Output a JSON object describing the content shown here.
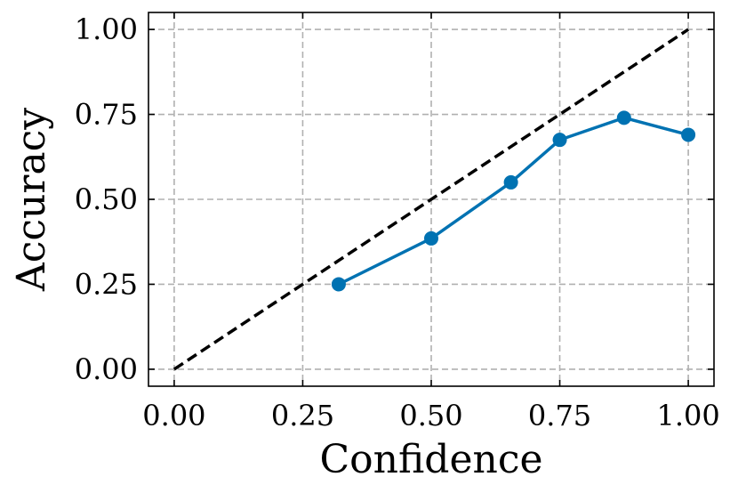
{
  "chart_data": {
    "type": "line",
    "xlabel": "Confidence",
    "ylabel": "Accuracy",
    "xlim": [
      -0.05,
      1.05
    ],
    "ylim": [
      -0.05,
      1.05
    ],
    "xticks": [
      0.0,
      0.25,
      0.5,
      0.75,
      1.0
    ],
    "yticks": [
      0.0,
      0.25,
      0.5,
      0.75,
      1.0
    ],
    "xtick_labels": [
      "0.00",
      "0.25",
      "0.50",
      "0.75",
      "1.00"
    ],
    "ytick_labels": [
      "0.00",
      "0.25",
      "0.50",
      "0.75",
      "1.00"
    ],
    "grid": true,
    "reference_line": {
      "x": [
        0.0,
        1.0
      ],
      "y": [
        0.0,
        1.0
      ],
      "color": "#000000",
      "style": "dashed"
    },
    "series": [
      {
        "color": "#0072B2",
        "marker": "circle",
        "x": [
          0.32,
          0.5,
          0.655,
          0.75,
          0.875,
          1.0
        ],
        "y": [
          0.25,
          0.385,
          0.55,
          0.675,
          0.74,
          0.69
        ]
      }
    ]
  }
}
